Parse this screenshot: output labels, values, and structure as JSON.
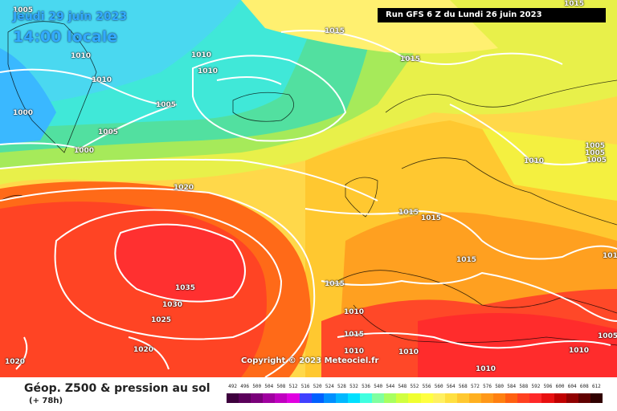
{
  "header": {
    "date": "Jeudi 29 juin 2023",
    "time": "14:00 locale",
    "run": "Run GFS 6 Z du Lundi 26 juin 2023"
  },
  "copyright": "Copyright © 2023 Meteociel.fr",
  "footer": {
    "title": "Géop. Z500 & pression au sol",
    "subtitle": "(+ 78h)"
  },
  "isobar_labels": [
    "1005",
    "1015",
    "1015",
    "1010",
    "1010",
    "1010",
    "1010",
    "1005",
    "1000",
    "1005",
    "1000",
    "1020",
    "1035",
    "1030",
    "1025",
    "1020",
    "1020",
    "1015",
    "1015",
    "1015",
    "1015",
    "1010",
    "1015",
    "1010",
    "1010",
    "1010",
    "1015",
    "1010",
    "1010",
    "1005",
    "1005",
    "1005",
    "1005",
    "1015"
  ],
  "scale": {
    "labels": [
      "492",
      "496",
      "500",
      "504",
      "508",
      "512",
      "516",
      "520",
      "524",
      "528",
      "532",
      "536",
      "540",
      "544",
      "548",
      "552",
      "556",
      "560",
      "564",
      "568",
      "572",
      "576",
      "580",
      "584",
      "588",
      "592",
      "596",
      "600",
      "604",
      "608",
      "612"
    ],
    "colors": [
      "#3d003d",
      "#5a005a",
      "#7a007a",
      "#a000a0",
      "#c000c0",
      "#e000e0",
      "#4040ff",
      "#0060ff",
      "#0090ff",
      "#00b8ff",
      "#00e0ff",
      "#40ffe0",
      "#80ffa0",
      "#a8ff60",
      "#d0ff40",
      "#f0ff30",
      "#ffff40",
      "#fff060",
      "#ffe040",
      "#ffc830",
      "#ffb020",
      "#ff9818",
      "#ff8010",
      "#ff6010",
      "#ff4020",
      "#ff2828",
      "#e81010",
      "#c00000",
      "#900000",
      "#600000",
      "#300000"
    ]
  }
}
